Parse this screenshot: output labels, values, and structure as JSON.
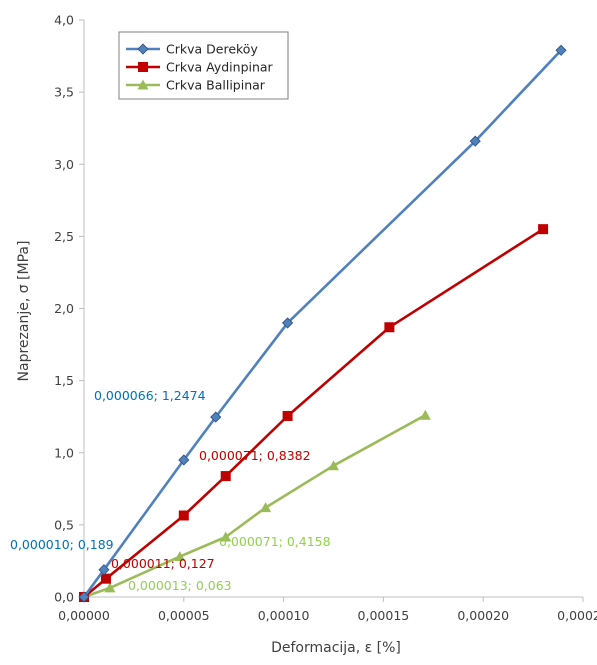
{
  "chart_data": {
    "type": "line",
    "title": "",
    "xlabel": "Deformacija, ε [%]",
    "ylabel": "Naprezanje, σ [MPa]",
    "xlim": [
      0,
      0.00025
    ],
    "ylim": [
      0,
      4.0
    ],
    "x_ticks": [
      0,
      5e-05,
      0.0001,
      0.00015,
      0.0002,
      0.00025
    ],
    "y_ticks": [
      0,
      0.5,
      1.0,
      1.5,
      2.0,
      2.5,
      3.0,
      3.5,
      4.0
    ],
    "x_tick_labels": [
      "0,00000",
      "0,00005",
      "0,00010",
      "0,00015",
      "0,00020",
      "0,00025"
    ],
    "y_tick_labels": [
      "0,0",
      "0,5",
      "1,0",
      "1,5",
      "2,0",
      "2,5",
      "3,0",
      "3,5",
      "4,0"
    ],
    "grid": false,
    "legend_position": "top-left",
    "series": [
      {
        "name": "Crkva Dereköy",
        "color": "#4F81BD",
        "marker": "diamond",
        "x": [
          0,
          1e-05,
          5e-05,
          6.6e-05,
          0.000102,
          0.000196,
          0.000239
        ],
        "y": [
          0,
          0.189,
          0.95,
          1.2474,
          1.9,
          3.16,
          3.79
        ]
      },
      {
        "name": "Crkva Aydinpinar",
        "color": "#C00000",
        "marker": "square",
        "x": [
          0,
          1.1e-05,
          5e-05,
          7.1e-05,
          0.000102,
          0.000153,
          0.00023
        ],
        "y": [
          0,
          0.127,
          0.565,
          0.8382,
          1.255,
          1.87,
          2.55
        ]
      },
      {
        "name": "Crkva Ballipinar",
        "color": "#9BBB59",
        "marker": "triangle",
        "x": [
          0,
          1.3e-05,
          4.8e-05,
          7.1e-05,
          9.1e-05,
          0.000125,
          0.000171
        ],
        "y": [
          0,
          0.063,
          0.28,
          0.4158,
          0.62,
          0.91,
          1.26
        ]
      }
    ],
    "annotations": [
      {
        "text": "0,000066; 1,2474",
        "color": "#0070C0"
      },
      {
        "text": "0,000071; 0,8382",
        "color": "#C00000"
      },
      {
        "text": "0,000010; 0,189",
        "color": "#0070C0"
      },
      {
        "text": "0,000011; 0,127",
        "color": "#C00000"
      },
      {
        "text": "0,000071; 0,4158",
        "color": "#92D050"
      },
      {
        "text": "0,000013; 0,063",
        "color": "#92D050"
      }
    ]
  }
}
